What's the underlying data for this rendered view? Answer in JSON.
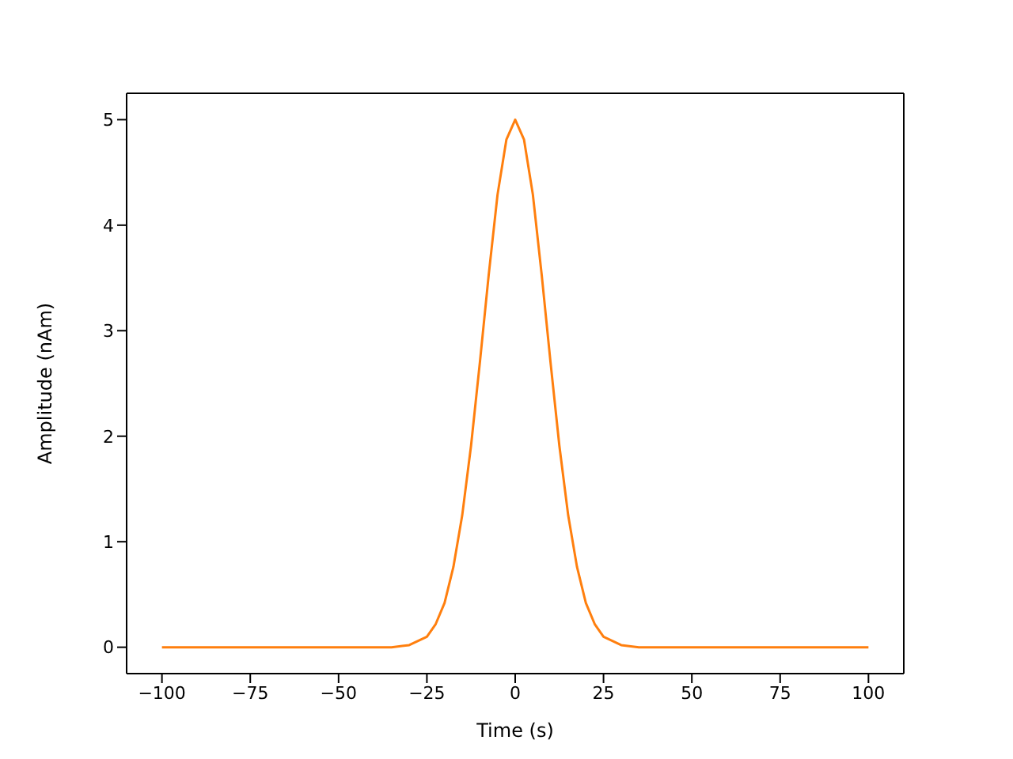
{
  "chart_data": {
    "type": "line",
    "xlabel": "Time (s)",
    "ylabel": "Amplitude (nAm)",
    "x": [
      -100,
      -50,
      -40,
      -35,
      -30,
      -25,
      -22.5,
      -20,
      -17.5,
      -15,
      -12.5,
      -10,
      -7.5,
      -5,
      -2.5,
      0,
      2.5,
      5,
      7.5,
      10,
      12.5,
      15,
      17.5,
      20,
      22.5,
      25,
      30,
      35,
      40,
      50,
      100
    ],
    "series": [
      {
        "color": "#ff7f0e",
        "values": [
          0,
          0,
          0,
          0,
          0.02,
          0.1,
          0.22,
          0.42,
          0.76,
          1.25,
          1.91,
          2.7,
          3.53,
          4.29,
          4.81,
          5,
          4.81,
          4.29,
          3.53,
          2.7,
          1.91,
          1.25,
          0.76,
          0.42,
          0.22,
          0.1,
          0.02,
          0,
          0,
          0,
          0
        ]
      }
    ],
    "xlim": [
      -110,
      110
    ],
    "xticks": [
      -100,
      -75,
      -50,
      -25,
      0,
      25,
      50,
      75,
      100
    ],
    "ylim": [
      -0.25,
      5.25
    ],
    "yticks": [
      0,
      1,
      2,
      3,
      4,
      5
    ]
  }
}
